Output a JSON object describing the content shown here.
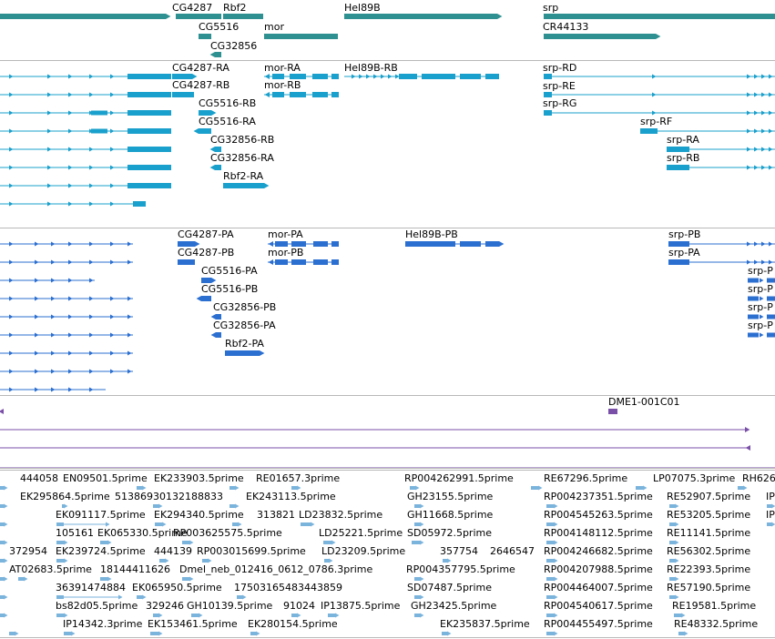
{
  "tracks": {
    "genes": {
      "color": "#2e9090",
      "labels": [
        "CG4287",
        "Rbf2",
        "Hel89B",
        "srp",
        "CG5516",
        "mor",
        "CR44133",
        "CG32856"
      ]
    },
    "transcripts_a": {
      "color": "#1aa0cc",
      "labels": [
        "CG4287-RA",
        "mor-RA",
        "Hel89B-RB",
        "srp-RD",
        "CG4287-RB",
        "mor-RB",
        "srp-RE",
        "CG5516-RB",
        "srp-RG",
        "CG5516-RA",
        "srp-RF",
        "CG32856-RB",
        "srp-RA",
        "CG32856-RA",
        "srp-RB",
        "Rbf2-RA"
      ]
    },
    "proteins": {
      "color": "#2b6fd1",
      "labels": [
        "CG4287-PA",
        "mor-PA",
        "Hel89B-PB",
        "srp-PB",
        "CG4287-PB",
        "mor-PB",
        "srp-PA",
        "CG5516-PA",
        "CG5516-PB",
        "CG32856-PB",
        "CG32856-PA",
        "Rbf2-PA",
        "srp-P",
        "srp-P",
        "srp-P",
        "srp-P"
      ]
    },
    "clones": {
      "color": "#7a4fa8",
      "labels": [
        "DME1-001C01"
      ]
    },
    "ests": {
      "color": "#7ab3dc",
      "labels": [
        "444058",
        "EN09501.5prime",
        "EK233903.5prime",
        "RE01657.3prime",
        "RP004262991.5prime",
        "RE67296.5prime",
        "LP07075.3prime",
        "RH626",
        "EK295864.5prime",
        "51386930132188833",
        "EK243113.5prime",
        "GH23155.5prime",
        "RP004237351.5prime",
        "RE52907.5prime",
        "IP",
        "EK091117.5prime",
        "EK294340.5prime",
        "313821",
        "LD23832.5prime",
        "GH11668.5prime",
        "RP004545263.5prime",
        "RE53205.5prime",
        "IP",
        "105161",
        "EK065330.5prime",
        "RP003625575.5prime",
        "LD25221.5prime",
        "SD05972.5prime",
        "RP004148112.5prime",
        "RE11141.5prime",
        "372954",
        "EK239724.5prime",
        "444139",
        "RP003015699.5prime",
        "LD23209.5prime",
        "357754",
        "2646547",
        "RP004246682.5prime",
        "RE56302.5prime",
        "AT02683.5prime",
        "18144411626",
        "Dmel_neb_012416_0612_0786.3prime",
        "RP004357795.5prime",
        "RP004207988.5prime",
        "RE22393.5prime",
        "36391474884",
        "EK065950.5prime",
        "17503165483443859",
        "SD07487.5prime",
        "RP004464007.5prime",
        "RE57190.5prime",
        "bs82d05.5prime",
        "329246",
        "GH10139.5prime",
        "91024",
        "IP13875.5prime",
        "GH23425.5prime",
        "RP004540617.5prime",
        "RE19581.5prime",
        "IP14342.3prime",
        "EK153461.5prime",
        "EK280154.5prime",
        "EK235837.5prime",
        "RP004455497.5prime",
        "RE48332.5prime"
      ]
    }
  }
}
